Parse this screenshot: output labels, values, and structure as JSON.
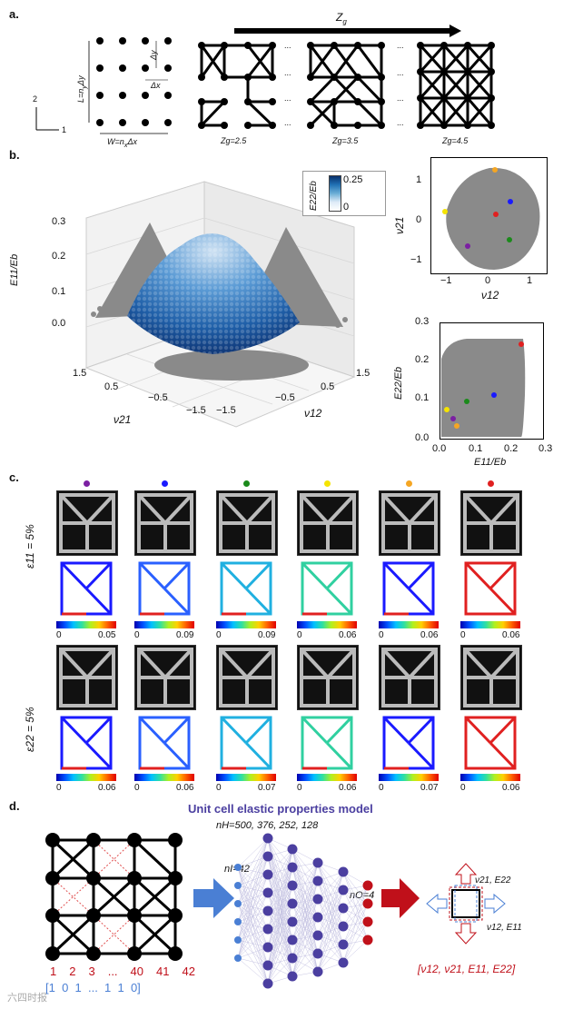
{
  "panel_a": {
    "label": "a.",
    "zg_arrow_label": "Z",
    "zg_arrow_sub": "g",
    "axis_1": "1",
    "axis_2": "2",
    "height_label": "L=n",
    "height_label_sub": "y",
    "height_label_tail": "Δy",
    "width_label": "W=n",
    "width_label_sub": "x",
    "width_label_tail": "Δx",
    "dy": "Δy",
    "dx": "Δx",
    "ellipsis": "...",
    "zg_values": [
      "Zg=2.5",
      "Zg=3.5",
      "Zg=4.5"
    ]
  },
  "panel_b": {
    "label": "b.",
    "colorbar_title": "E22/Eb",
    "colorbar_max": "0.25",
    "colorbar_min": "0",
    "plot3d": {
      "zlabel": "E11/Eb",
      "zticks": [
        "0.3",
        "0.2",
        "0.1",
        "0.0"
      ],
      "xlabel": "ν21",
      "xticks": [
        "1.5",
        "0.5",
        "−0.5",
        "−1.5"
      ],
      "ylabel": "ν12",
      "yticks": [
        "−1.5",
        "−0.5",
        "0.5",
        "1.5"
      ]
    },
    "scatter_top": {
      "xlabel": "ν12",
      "ylabel": "ν21",
      "xticks": [
        "−1",
        "0",
        "1"
      ],
      "yticks": [
        "1",
        "0",
        "−1"
      ]
    },
    "scatter_bottom": {
      "xlabel": "E11/Eb",
      "ylabel": "E22/Eb",
      "xticks": [
        "0.0",
        "0.1",
        "0.2",
        "0.3"
      ],
      "yticks": [
        "0.3",
        "0.2",
        "0.1",
        "0.0"
      ]
    }
  },
  "panel_c": {
    "label": "c.",
    "row1_label": "ε11 = 5%",
    "row2_label": "ε22 = 5%",
    "marker_colors": [
      "#7b1fa2",
      "#1a1aff",
      "#1b8a1b",
      "#f5e400",
      "#f5a623",
      "#e02020"
    ],
    "row1_max": [
      "0.05",
      "0.09",
      "0.09",
      "0.06",
      "0.06",
      "0.06"
    ],
    "row2_max": [
      "0.06",
      "0.06",
      "0.07",
      "0.06",
      "0.07",
      "0.06"
    ],
    "cbar_min": "0"
  },
  "panel_d": {
    "label": "d.",
    "title": "Unit cell elastic properties model",
    "nh": "nH=500, 376, 252, 128",
    "ni": "nI=42",
    "no": "nO=4",
    "index_row": [
      "1",
      "2",
      "3",
      "...",
      "40",
      "41",
      "42"
    ],
    "binary_row": "[1  0  1  ...  1  1  0]",
    "output_vector": "[ν12, ν21, E11, E22]",
    "arrow_top": "ν21, E22",
    "arrow_right": "ν12, E11"
  },
  "watermark": "六四时报"
}
